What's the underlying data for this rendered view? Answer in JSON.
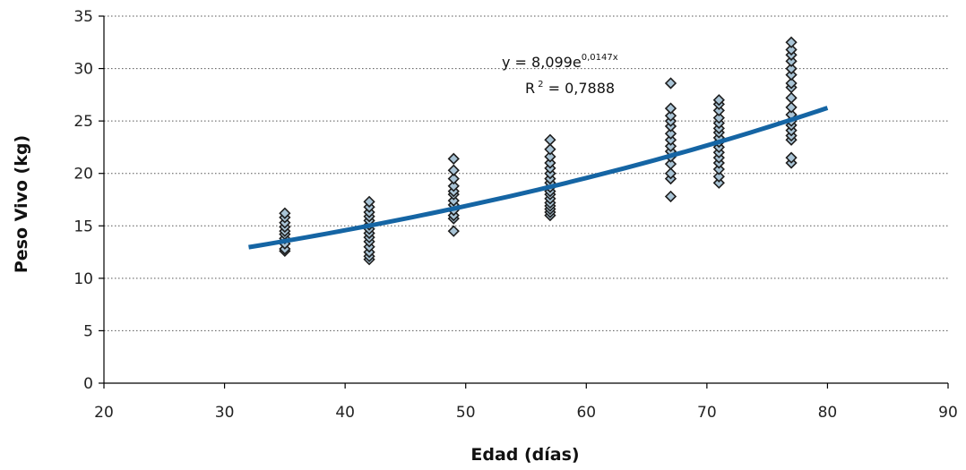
{
  "chart_data": {
    "type": "scatter",
    "title": "",
    "xlabel": "Edad (días)",
    "ylabel": "Peso Vivo (kg)",
    "xlim": [
      20,
      90
    ],
    "ylim": [
      0,
      35
    ],
    "xticks": [
      20,
      30,
      40,
      50,
      60,
      70,
      80,
      90
    ],
    "yticks": [
      0,
      5,
      10,
      15,
      20,
      25,
      30,
      35
    ],
    "grid": "horizontal dotted",
    "marker_color": "#a9c4d6",
    "marker_edge_color": "#1e1e1e",
    "trendline_color": "#1565a4",
    "series": [
      {
        "points": [
          [
            35,
            12.6
          ],
          [
            35,
            12.8
          ],
          [
            35,
            13.3
          ],
          [
            35,
            13.8
          ],
          [
            35,
            14.2
          ],
          [
            35,
            14.5
          ],
          [
            35,
            14.9
          ],
          [
            35,
            15.3
          ],
          [
            35,
            15.8
          ],
          [
            35,
            16.2
          ],
          [
            42,
            11.8
          ],
          [
            42,
            12.1
          ],
          [
            42,
            12.5
          ],
          [
            42,
            13.0
          ],
          [
            42,
            13.5
          ],
          [
            42,
            13.9
          ],
          [
            42,
            14.3
          ],
          [
            42,
            14.7
          ],
          [
            42,
            15.1
          ],
          [
            42,
            15.5
          ],
          [
            42,
            15.9
          ],
          [
            42,
            16.3
          ],
          [
            42,
            16.8
          ],
          [
            42,
            17.3
          ],
          [
            49,
            14.5
          ],
          [
            49,
            15.7
          ],
          [
            49,
            16.0
          ],
          [
            49,
            16.5
          ],
          [
            49,
            17.0
          ],
          [
            49,
            17.4
          ],
          [
            49,
            18.0
          ],
          [
            49,
            18.3
          ],
          [
            49,
            18.8
          ],
          [
            49,
            19.5
          ],
          [
            49,
            20.3
          ],
          [
            49,
            21.4
          ],
          [
            57,
            16.0
          ],
          [
            57,
            16.3
          ],
          [
            57,
            16.6
          ],
          [
            57,
            16.9
          ],
          [
            57,
            17.2
          ],
          [
            57,
            17.6
          ],
          [
            57,
            18.0
          ],
          [
            57,
            18.3
          ],
          [
            57,
            18.7
          ],
          [
            57,
            19.1
          ],
          [
            57,
            19.5
          ],
          [
            57,
            20.0
          ],
          [
            57,
            20.5
          ],
          [
            57,
            21.0
          ],
          [
            57,
            21.6
          ],
          [
            57,
            22.3
          ],
          [
            57,
            23.2
          ],
          [
            67,
            17.8
          ],
          [
            67,
            19.5
          ],
          [
            67,
            20.0
          ],
          [
            67,
            20.9
          ],
          [
            67,
            21.6
          ],
          [
            67,
            22.1
          ],
          [
            67,
            22.6
          ],
          [
            67,
            23.2
          ],
          [
            67,
            23.8
          ],
          [
            67,
            24.5
          ],
          [
            67,
            25.0
          ],
          [
            67,
            25.5
          ],
          [
            67,
            26.2
          ],
          [
            67,
            28.6
          ],
          [
            71,
            19.1
          ],
          [
            71,
            19.7
          ],
          [
            71,
            20.4
          ],
          [
            71,
            21.0
          ],
          [
            71,
            21.5
          ],
          [
            71,
            22.0
          ],
          [
            71,
            22.5
          ],
          [
            71,
            23.0
          ],
          [
            71,
            23.4
          ],
          [
            71,
            23.9
          ],
          [
            71,
            24.3
          ],
          [
            71,
            24.8
          ],
          [
            71,
            25.3
          ],
          [
            71,
            26.0
          ],
          [
            71,
            26.6
          ],
          [
            71,
            27.0
          ],
          [
            77,
            21.0
          ],
          [
            77,
            21.5
          ],
          [
            77,
            23.2
          ],
          [
            77,
            23.6
          ],
          [
            77,
            24.1
          ],
          [
            77,
            24.6
          ],
          [
            77,
            25.0
          ],
          [
            77,
            25.6
          ],
          [
            77,
            26.3
          ],
          [
            77,
            27.2
          ],
          [
            77,
            28.2
          ],
          [
            77,
            28.6
          ],
          [
            77,
            29.4
          ],
          [
            77,
            30.0
          ],
          [
            77,
            30.7
          ],
          [
            77,
            31.3
          ],
          [
            77,
            31.8
          ],
          [
            77,
            32.5
          ]
        ]
      }
    ],
    "trendline": {
      "type": "exponential",
      "a": 8.099,
      "b": 0.0147,
      "x_range": [
        32,
        80
      ]
    },
    "annotations": {
      "equation_prefix": "y = 8,099e",
      "equation_exponent": "0,0147x",
      "r2_prefix": "R",
      "r2_exponent": "2",
      "r2_value": " = 0,7888"
    }
  }
}
